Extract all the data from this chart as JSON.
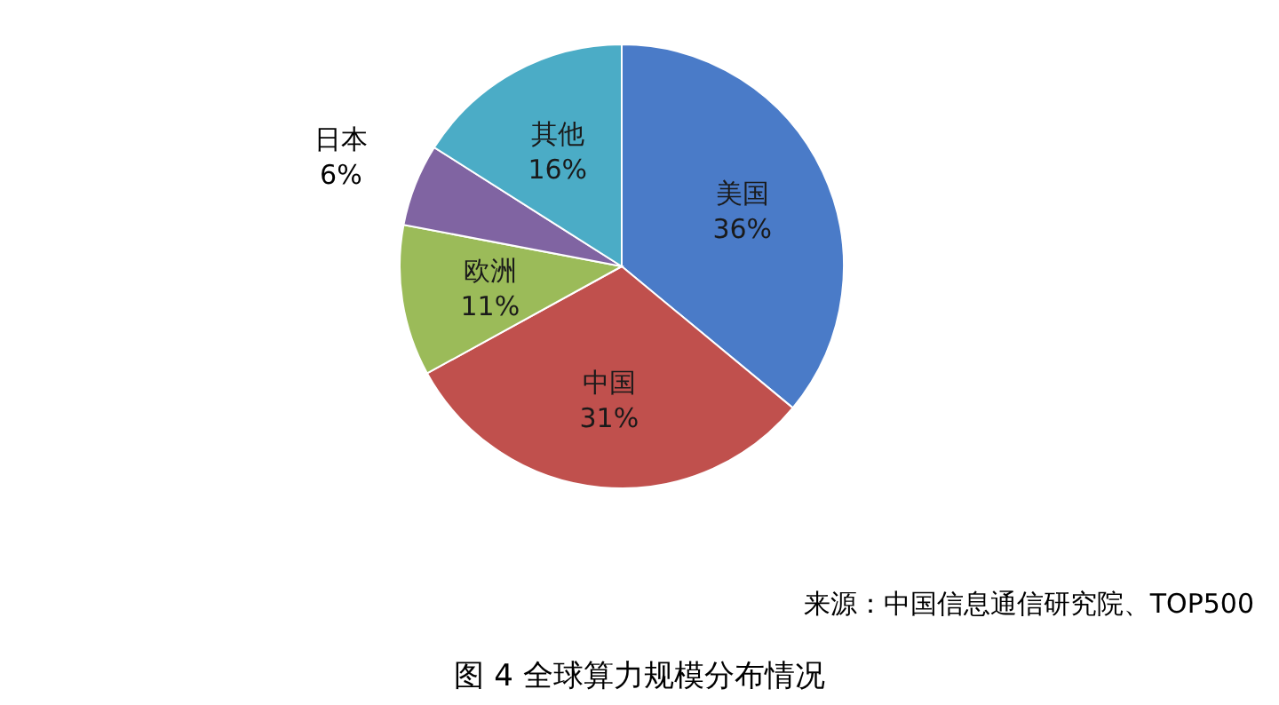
{
  "chart_data": {
    "type": "pie",
    "title": "图 4 全球算力规模分布情况",
    "categories": [
      "美国",
      "中国",
      "欧洲",
      "日本",
      "其他"
    ],
    "values": [
      36,
      31,
      11,
      6,
      16
    ],
    "value_labels": [
      "36%",
      "31%",
      "11%",
      "6%",
      "16%"
    ],
    "colors": [
      "#4a7bc8",
      "#c0504d",
      "#9bbb59",
      "#8064a2",
      "#4bacc6"
    ],
    "annotations": [
      "来源：中国信息通信研究院、TOP500"
    ]
  }
}
